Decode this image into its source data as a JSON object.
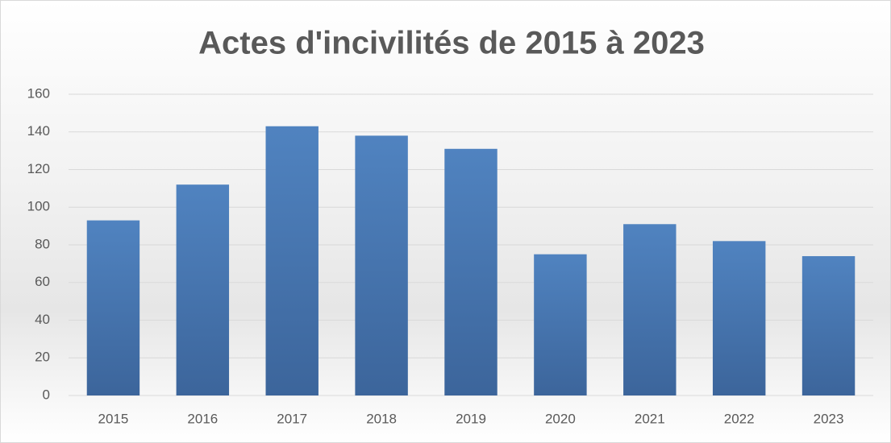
{
  "chart_data": {
    "type": "bar",
    "title": "Actes d'incivilités de 2015 à 2023",
    "categories": [
      "2015",
      "2016",
      "2017",
      "2018",
      "2019",
      "2020",
      "2021",
      "2022",
      "2023"
    ],
    "values": [
      93,
      112,
      143,
      138,
      131,
      75,
      91,
      82,
      74
    ],
    "color": "#4f81bd",
    "ylim": [
      0,
      160
    ],
    "yticks": [
      0,
      20,
      40,
      60,
      80,
      100,
      120,
      140,
      160
    ],
    "grid": true
  }
}
